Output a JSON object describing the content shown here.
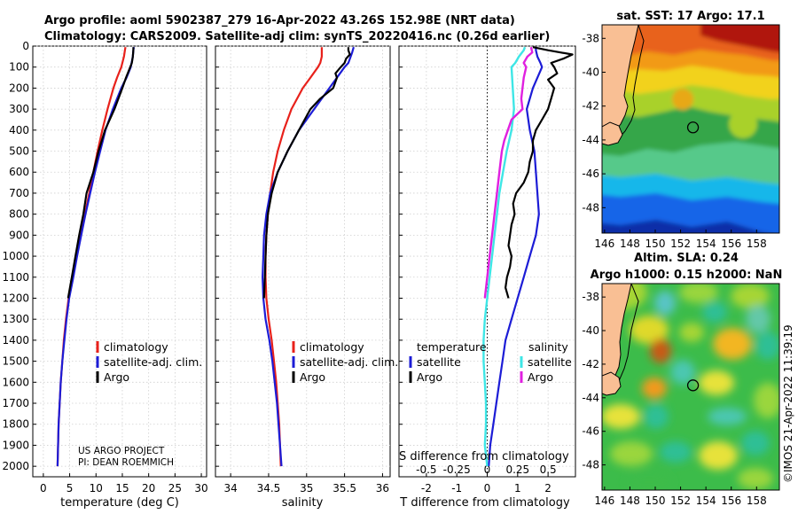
{
  "header": {
    "line1": "Argo profile: aoml 5902387_279 16-Apr-2022 43.26S 152.98E (NRT data)",
    "line2": "Climatology: CARS2009. Satellite-adj clim: synTS_20220416.nc (0.26d earlier)"
  },
  "colors": {
    "climatology": "#e8211b",
    "satellite": "#1c1cd6",
    "argo": "#000000",
    "temp_satellite_diff": "#1c1cd6",
    "sal_satellite_diff": "#3ee6e6",
    "sal_argo_diff": "#e020e0"
  },
  "credits": {
    "project": "US ARGO PROJECT",
    "pi": "PI: DEAN ROEMMICH",
    "imos": "©IMOS 21-Apr-2022 11:39:19"
  },
  "chart_data": [
    {
      "id": "temperature",
      "type": "line",
      "xlabel": "temperature (deg C)",
      "ylabel": "",
      "xlim": [
        -2,
        31
      ],
      "ylim": [
        2050,
        0
      ],
      "xticks": [
        0,
        5,
        10,
        15,
        20,
        25,
        30
      ],
      "xtick_labels": [
        "0",
        "5",
        "10",
        "15",
        "20",
        "25",
        "30"
      ],
      "yticks": [
        0,
        100,
        200,
        300,
        400,
        500,
        600,
        700,
        800,
        900,
        1000,
        1100,
        1200,
        1300,
        1400,
        1500,
        1600,
        1700,
        1800,
        1900,
        2000
      ],
      "legend": [
        "climatology",
        "satellite-adj. clim.",
        "Argo"
      ],
      "series": [
        {
          "name": "climatology",
          "depth": [
            5,
            20,
            50,
            100,
            150,
            200,
            300,
            400,
            500,
            600,
            700,
            800,
            900,
            1000,
            1100,
            1200,
            1300,
            1400,
            1500,
            1600,
            1700,
            1800,
            1900,
            2000
          ],
          "values": [
            15.6,
            15.5,
            15.3,
            14.8,
            14.0,
            13.3,
            12.2,
            11.2,
            10.3,
            9.5,
            8.7,
            7.9,
            7.1,
            6.3,
            5.6,
            4.8,
            4.3,
            3.9,
            3.6,
            3.3,
            3.1,
            2.9,
            2.8,
            2.7
          ]
        },
        {
          "name": "satellite-adj. clim.",
          "depth": [
            5,
            20,
            50,
            100,
            150,
            200,
            300,
            400,
            500,
            600,
            700,
            800,
            900,
            1000,
            1100,
            1200,
            1300,
            1400,
            1500,
            1600,
            1700,
            1800,
            1900,
            2000
          ],
          "values": [
            17.2,
            17.1,
            17.0,
            16.6,
            15.8,
            14.8,
            13.2,
            11.8,
            10.8,
            9.8,
            8.9,
            8.0,
            7.2,
            6.4,
            5.7,
            4.9,
            4.4,
            4.0,
            3.6,
            3.3,
            3.1,
            2.9,
            2.8,
            2.7
          ]
        },
        {
          "name": "Argo",
          "depth": [
            5,
            20,
            50,
            80,
            100,
            150,
            200,
            300,
            400,
            500,
            600,
            700,
            800,
            900,
            1000,
            1100,
            1200
          ],
          "values": [
            17.1,
            17.1,
            17.0,
            16.8,
            16.5,
            15.7,
            15.0,
            13.5,
            11.7,
            10.5,
            9.5,
            8.2,
            7.6,
            6.8,
            6.1,
            5.4,
            4.7
          ]
        }
      ]
    },
    {
      "id": "salinity",
      "type": "line",
      "xlabel": "salinity",
      "ylabel": "",
      "xlim": [
        33.8,
        36.1
      ],
      "ylim": [
        2050,
        0
      ],
      "xticks": [
        34,
        34.5,
        35,
        35.5,
        36
      ],
      "xtick_labels": [
        "34",
        "34.5",
        "35",
        "35.5",
        "36"
      ],
      "legend": [
        "climatology",
        "satellite-adj. clim.",
        "Argo"
      ],
      "series": [
        {
          "name": "climatology",
          "depth": [
            5,
            50,
            80,
            100,
            150,
            200,
            300,
            400,
            500,
            600,
            700,
            800,
            900,
            1000,
            1100,
            1200,
            1300,
            1400,
            1500,
            1600,
            1700,
            1800,
            1900,
            2000
          ],
          "values": [
            35.2,
            35.2,
            35.18,
            35.15,
            35.05,
            34.95,
            34.8,
            34.7,
            34.62,
            34.56,
            34.52,
            34.49,
            34.47,
            34.46,
            34.46,
            34.47,
            34.5,
            34.54,
            34.57,
            34.6,
            34.62,
            34.64,
            34.65,
            34.66
          ]
        },
        {
          "name": "satellite-adj. clim.",
          "depth": [
            5,
            30,
            50,
            80,
            100,
            150,
            200,
            300,
            400,
            500,
            600,
            700,
            800,
            900,
            1000,
            1100,
            1200,
            1300,
            1400,
            1500,
            1600,
            1700,
            1800,
            1900,
            2000
          ],
          "values": [
            35.62,
            35.6,
            35.58,
            35.55,
            35.5,
            35.4,
            35.3,
            35.1,
            34.9,
            34.75,
            34.62,
            34.52,
            34.47,
            34.44,
            34.43,
            34.42,
            34.43,
            34.46,
            34.51,
            34.55,
            34.58,
            34.61,
            34.63,
            34.65,
            34.67
          ]
        },
        {
          "name": "Argo",
          "depth": [
            5,
            20,
            40,
            60,
            80,
            100,
            130,
            150,
            200,
            250,
            300,
            400,
            500,
            600,
            700,
            800,
            900,
            1000,
            1100,
            1200
          ],
          "values": [
            35.55,
            35.55,
            35.57,
            35.52,
            35.5,
            35.45,
            35.38,
            35.4,
            35.35,
            35.18,
            35.05,
            34.9,
            34.75,
            34.62,
            34.54,
            34.49,
            34.47,
            34.46,
            34.45,
            34.44
          ]
        }
      ]
    },
    {
      "id": "difference",
      "type": "line",
      "xlabel": "T difference from climatology",
      "xlabel_top": "S difference from climatology",
      "ylabel": "",
      "xlim": [
        -2.9,
        2.9
      ],
      "ylim": [
        2050,
        0
      ],
      "xticks": [
        -2,
        -1,
        0,
        1,
        2
      ],
      "xtick_labels": [
        "-2",
        "-1",
        "0",
        "1",
        "2"
      ],
      "s_ticks": [
        -0.5,
        -0.25,
        0,
        0.25,
        0.5
      ],
      "s_tick_labels": [
        "-0.5",
        "-0.25",
        "0",
        "0.25",
        "0.5"
      ],
      "legend_temperature_title": "temperature",
      "legend_salinity_title": "salinity",
      "legend_temperature": [
        "satellite",
        "Argo"
      ],
      "legend_salinity": [
        "satellite",
        "Argo"
      ],
      "series": [
        {
          "name": "temperature satellite",
          "depth": [
            5,
            20,
            50,
            80,
            100,
            200,
            300,
            400,
            500,
            600,
            700,
            800,
            900,
            1000,
            1100,
            1200,
            1300,
            1400,
            1500,
            1600,
            1700,
            1800,
            1900,
            2000
          ],
          "values": [
            1.6,
            1.6,
            1.65,
            1.75,
            1.8,
            1.5,
            1.3,
            1.4,
            1.55,
            1.6,
            1.65,
            1.7,
            1.6,
            1.4,
            1.2,
            1.0,
            0.8,
            0.6,
            0.5,
            0.4,
            0.3,
            0.2,
            0.1,
            0.05
          ]
        },
        {
          "name": "temperature Argo",
          "depth": [
            5,
            20,
            40,
            60,
            80,
            100,
            130,
            160,
            200,
            250,
            300,
            350,
            400,
            450,
            500,
            550,
            600,
            650,
            700,
            750,
            800,
            850,
            900,
            950,
            1000,
            1050,
            1100,
            1150,
            1200
          ],
          "values": [
            1.5,
            2.0,
            2.8,
            2.5,
            2.1,
            2.2,
            2.3,
            2.0,
            2.2,
            2.1,
            2.0,
            1.8,
            1.6,
            1.5,
            1.5,
            1.4,
            1.35,
            1.2,
            0.95,
            0.85,
            0.9,
            0.8,
            0.75,
            0.7,
            0.8,
            0.75,
            0.65,
            0.6,
            0.7
          ]
        },
        {
          "name": "salinity satellite",
          "depth": [
            5,
            20,
            50,
            80,
            100,
            200,
            300,
            400,
            500,
            600,
            700,
            800,
            900,
            1000,
            1100,
            1200,
            1300,
            1400,
            1500,
            1600,
            1700,
            1800,
            1900,
            2000
          ],
          "values": [
            0.31,
            0.3,
            0.26,
            0.23,
            0.2,
            0.21,
            0.22,
            0.2,
            0.16,
            0.13,
            0.1,
            0.08,
            0.06,
            0.04,
            0.02,
            0.0,
            -0.02,
            -0.03,
            -0.03,
            -0.02,
            -0.01,
            -0.01,
            -0.02,
            0.0
          ]
        },
        {
          "name": "salinity Argo",
          "depth": [
            5,
            30,
            50,
            80,
            100,
            150,
            200,
            250,
            300,
            350,
            400,
            450,
            500,
            600,
            700,
            800,
            900,
            1000,
            1100,
            1200
          ],
          "values": [
            0.36,
            0.37,
            0.33,
            0.3,
            0.32,
            0.3,
            0.29,
            0.28,
            0.29,
            0.2,
            0.17,
            0.14,
            0.12,
            0.1,
            0.08,
            0.06,
            0.04,
            0.02,
            0.0,
            -0.02
          ]
        }
      ]
    },
    {
      "id": "sst_map",
      "type": "heatmap",
      "title": "sat. SST: 17 Argo: 17.1",
      "xlim": [
        145.8,
        159.8
      ],
      "ylim": [
        -49.5,
        -37.2
      ],
      "xticks": [
        146,
        148,
        150,
        152,
        154,
        156,
        158
      ],
      "xtick_labels": [
        "146",
        "148",
        "150",
        "152",
        "154",
        "156",
        "158"
      ],
      "yticks": [
        -38,
        -40,
        -42,
        -44,
        -46,
        -48
      ],
      "ytick_labels": [
        "-38",
        "-40",
        "-42",
        "-44",
        "-46",
        "-48"
      ],
      "float_position": [
        152.98,
        -43.26
      ]
    },
    {
      "id": "sla_map",
      "type": "heatmap",
      "title_line1": "Altim. SLA: 0.24",
      "title_line2": "Argo h1000: 0.15 h2000: NaN",
      "xlim": [
        145.8,
        159.8
      ],
      "ylim": [
        -49.5,
        -37.2
      ],
      "xticks": [
        146,
        148,
        150,
        152,
        154,
        156,
        158
      ],
      "xtick_labels": [
        "146",
        "148",
        "150",
        "152",
        "154",
        "156",
        "158"
      ],
      "yticks": [
        -38,
        -40,
        -42,
        -44,
        -46,
        -48
      ],
      "ytick_labels": [
        "-38",
        "-40",
        "-42",
        "-44",
        "-46",
        "-48"
      ],
      "float_position": [
        152.98,
        -43.26
      ]
    }
  ]
}
